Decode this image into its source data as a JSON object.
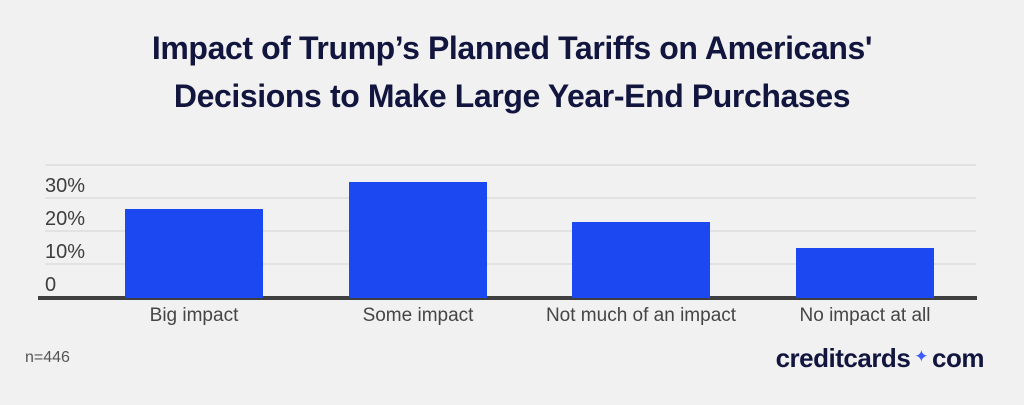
{
  "title": {
    "line1": "Impact of Trump’s Planned Tariffs on Americans'",
    "line2": "Decisions to Make Large Year-End Purchases"
  },
  "chart_data": {
    "type": "bar",
    "title": "Impact of Trump’s Planned Tariffs on Americans' Decisions to Make Large Year-End Purchases",
    "categories": [
      "Big impact",
      "Some impact",
      "Not much of an impact",
      "No impact at all"
    ],
    "values": [
      27,
      35,
      23,
      15
    ],
    "unit": "percent",
    "xlabel": "",
    "ylabel": "",
    "ylim": [
      0,
      40
    ],
    "y_ticks": [
      {
        "value": 40,
        "label": ""
      },
      {
        "value": 30,
        "label": "30%"
      },
      {
        "value": 20,
        "label": "20%"
      },
      {
        "value": 10,
        "label": "10%"
      },
      {
        "value": 0,
        "label": "0"
      }
    ],
    "grid": true,
    "legend": false,
    "bar_color": "#1b48f0"
  },
  "footer": {
    "sample_size_note": "n=446",
    "brand_logo": {
      "word1": "creditcards",
      "separator_icon": "✦",
      "word2": "com"
    }
  },
  "colors": {
    "background": "#f1f1f1",
    "title_navy": "#12163f",
    "bar_blue": "#1b48f0",
    "logo_navy": "#12163f",
    "logo_diamond_blue": "#3d5afe",
    "axis_line": "#3f3f3f",
    "gridline": "#e2e2e2",
    "tick_label": "#3d3d3d",
    "category_label": "#454545",
    "note_gray": "#545454"
  }
}
